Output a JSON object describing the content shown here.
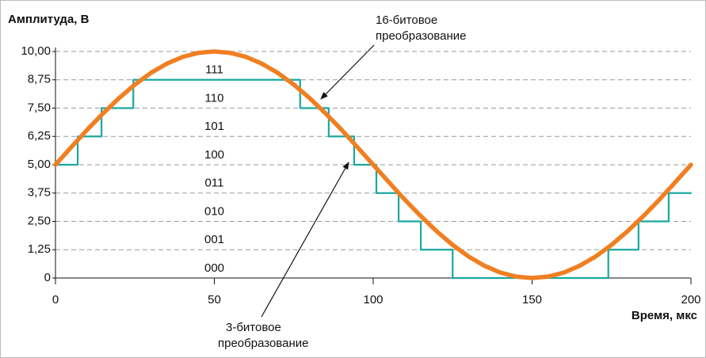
{
  "chart_data": {
    "type": "line",
    "ylabel": "Амплитуда, В",
    "xlabel": "Время, мкс",
    "xlim": [
      0,
      200
    ],
    "xticks": [
      0,
      50,
      100,
      150,
      200
    ],
    "ylim": [
      0,
      10
    ],
    "yticks": [
      0,
      {
        "value": 1.25,
        "label": "1,25"
      },
      {
        "value": 2.5,
        "label": "2,50"
      },
      {
        "value": 3.75,
        "label": "3,75"
      },
      {
        "value": 5,
        "label": "5,00"
      },
      {
        "value": 6.25,
        "label": "6,25"
      },
      {
        "value": 7.5,
        "label": "7,50"
      },
      {
        "value": 8.75,
        "label": "8,75"
      },
      {
        "value": 10,
        "label": "10,00"
      }
    ],
    "grid": true,
    "band_labels": [
      "000",
      "001",
      "010",
      "011",
      "100",
      "101",
      "110",
      "111"
    ],
    "series": [
      {
        "color": "#1aa89f",
        "step": "post",
        "x": [
          0,
          7,
          14.5,
          24.5,
          77,
          86,
          94,
          101,
          108,
          115,
          125,
          174,
          183.5,
          193
        ],
        "values": [
          5,
          6.25,
          7.5,
          8.75,
          7.5,
          6.25,
          5,
          3.75,
          2.5,
          1.25,
          0,
          1.25,
          2.5,
          3.75
        ]
      },
      {
        "color": "#f07f22",
        "x": [
          0,
          5,
          10,
          15,
          20,
          25,
          30,
          35,
          40,
          45,
          50,
          55,
          60,
          65,
          70,
          75,
          80,
          85,
          90,
          95,
          100,
          105,
          110,
          115,
          120,
          125,
          130,
          135,
          140,
          145,
          150,
          155,
          160,
          165,
          170,
          175,
          180,
          185,
          190,
          195,
          200
        ],
        "values": [
          5,
          5.78,
          6.55,
          7.27,
          7.94,
          8.54,
          9.05,
          9.46,
          9.76,
          9.94,
          10,
          9.94,
          9.76,
          9.46,
          9.05,
          8.54,
          7.94,
          7.27,
          6.55,
          5.78,
          5,
          4.22,
          3.45,
          2.73,
          2.06,
          1.46,
          0.95,
          0.54,
          0.24,
          0.06,
          0,
          0.06,
          0.24,
          0.54,
          0.95,
          1.46,
          2.06,
          2.73,
          3.45,
          4.22,
          5
        ]
      }
    ],
    "annotations": [
      {
        "text": [
          "16-битовое",
          "преобразование"
        ]
      },
      {
        "text": [
          "3-битовое",
          "преобразование"
        ]
      }
    ]
  }
}
